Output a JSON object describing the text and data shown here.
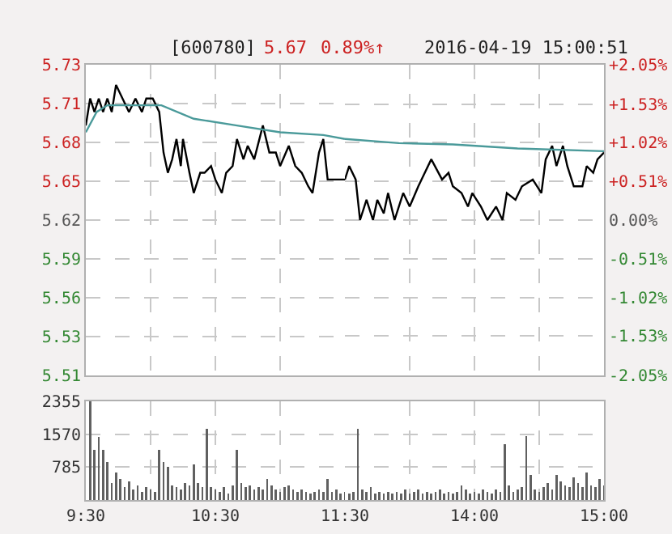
{
  "chart_data": [
    {
      "type": "line",
      "annotations": [
        "[600780]",
        "5.67",
        "0.89%↑",
        "2016-04-19 15:00:51"
      ],
      "xlim": [
        9.5,
        11.5
      ],
      "xticks": [
        {
          "value": 9.5,
          "label": null
        },
        {
          "value": 10,
          "label": null
        },
        {
          "value": 10.5,
          "label": null
        },
        {
          "value": 11,
          "label": null
        },
        {
          "value": 11.5,
          "label": null
        }
      ],
      "ylim": [
        5.505,
        5.735
      ],
      "yticks": [
        {
          "value": 5.505,
          "label": "5.51"
        },
        {
          "value": 5.53375,
          "label": "5.53"
        },
        {
          "value": 5.5625,
          "label": "5.56"
        },
        {
          "value": 5.59125,
          "label": "5.59"
        },
        {
          "value": 5.62,
          "label": "5.62"
        },
        {
          "value": 5.64875,
          "label": "5.65"
        },
        {
          "value": 5.6775,
          "label": "5.68"
        },
        {
          "value": 5.70625,
          "label": "5.71"
        },
        {
          "value": 5.735,
          "label": "5.73"
        }
      ],
      "grid": true,
      "tick_labels": "y",
      "series": [
        {
          "color": "#000000",
          "x": [
            9.5,
            9.5333,
            9.5667,
            9.6,
            9.6333,
            9.6667,
            9.7,
            9.7333,
            9.7833,
            9.8333,
            9.8833,
            9.9333,
            9.9667,
            10.0167,
            10.0667,
            10.1,
            10.1333,
            10.1667,
            10.2,
            10.2333,
            10.25,
            10.3,
            10.3333,
            10.3833,
            10.4167,
            10.4667,
            10.5,
            10.55,
            10.5833,
            10.6333,
            10.6667,
            10.7167,
            10.75,
            10.8,
            10.8667,
            10.9167,
            10.9667,
            11.0,
            11.0667,
            11.1167,
            11.1667,
            11.2167,
            11.25,
            11.3,
            11.3333,
            11.3667,
            11.4167,
            11.5
          ],
          "values": [
            5.69,
            5.71,
            5.7,
            5.71,
            5.7,
            5.71,
            5.7,
            5.72,
            5.71,
            5.7,
            5.71,
            5.7,
            5.71,
            5.71,
            5.7,
            5.67,
            5.655,
            5.665,
            5.68,
            5.66,
            5.68,
            5.655,
            5.64,
            5.655,
            5.655,
            5.66,
            5.65,
            5.64,
            5.655,
            5.66,
            5.68,
            5.665,
            5.675,
            5.665,
            5.69,
            5.67,
            5.67,
            5.66,
            5.675,
            5.66,
            5.655,
            5.645,
            5.64,
            5.67,
            5.68,
            5.65,
            5.65,
            5.65
          ]
        },
        {
          "color": "#4a9a9a",
          "x": [
            9.5,
            9.5833,
            9.6667,
            9.8333,
            10.0833,
            10.3333,
            10.6667,
            11.0,
            11.3333,
            11.5
          ],
          "values": [
            5.685,
            5.7,
            5.705,
            5.705,
            5.705,
            5.695,
            5.69,
            5.685,
            5.683,
            5.68
          ]
        }
      ]
    },
    {
      "type": "line",
      "xlim": [
        13,
        15
      ],
      "xticks": [
        {
          "value": 13.5,
          "label": null
        },
        {
          "value": 14,
          "label": null
        },
        {
          "value": 14.5,
          "label": null
        },
        {
          "value": 15,
          "label": null
        }
      ],
      "ylim": [
        5.505,
        5.735
      ],
      "y2lim": [
        -2.05,
        2.05
      ],
      "y2ticks": [
        {
          "value": -2.05,
          "label": "-2.05%"
        },
        {
          "value": -1.53,
          "label": "-1.53%"
        },
        {
          "value": -1.02,
          "label": "-1.02%"
        },
        {
          "value": -0.51,
          "label": "-0.51%"
        },
        {
          "value": 0,
          "label": "0.00%"
        },
        {
          "value": 0.51,
          "label": "+0.51%"
        },
        {
          "value": 1.02,
          "label": "+1.02%"
        },
        {
          "value": 1.53,
          "label": "+1.53%"
        },
        {
          "value": 2.05,
          "label": "+2.05%"
        }
      ],
      "grid": true,
      "tick_labels": "y",
      "series": [
        {
          "color": "#000000",
          "x": [
            13.0,
            13.0333,
            13.0833,
            13.1167,
            13.1667,
            13.2167,
            13.25,
            13.3,
            13.3333,
            13.3833,
            13.45,
            13.5,
            13.5667,
            13.6167,
            13.6667,
            13.75,
            13.8,
            13.8333,
            13.9,
            13.95,
            13.9833,
            14.05,
            14.1,
            14.1667,
            14.2167,
            14.25,
            14.3167,
            14.3667,
            14.45,
            14.5167,
            14.55,
            14.6,
            14.6333,
            14.6833,
            14.7167,
            14.7667,
            14.8333,
            14.8667,
            14.9167,
            14.95,
            15.0
          ],
          "values": [
            5.65,
            5.66,
            5.65,
            5.62,
            5.635,
            5.62,
            5.635,
            5.625,
            5.64,
            5.62,
            5.64,
            5.63,
            5.645,
            5.655,
            5.665,
            5.65,
            5.655,
            5.645,
            5.64,
            5.63,
            5.64,
            5.63,
            5.62,
            5.63,
            5.62,
            5.64,
            5.635,
            5.645,
            5.65,
            5.64,
            5.665,
            5.675,
            5.66,
            5.675,
            5.66,
            5.645,
            5.645,
            5.66,
            5.655,
            5.665,
            5.67
          ]
        },
        {
          "color": "#4a9a9a",
          "x": [
            13.0,
            13.4167,
            13.8333,
            14.3333,
            15.0
          ],
          "values": [
            5.68,
            5.677,
            5.676,
            5.673,
            5.671
          ]
        }
      ]
    },
    {
      "type": "bar",
      "color": "#606060",
      "grid": true,
      "xlim": [
        9.5,
        11.5
      ],
      "xticks": [
        {
          "value": 9.5,
          "label": "9:30"
        },
        {
          "value": 10,
          "label": null
        },
        {
          "value": 10.5,
          "label": "10:30"
        },
        {
          "value": 11,
          "label": null
        },
        {
          "value": 11.5,
          "label": "11:30"
        }
      ],
      "ylim": [
        0,
        2355
      ],
      "yticks": [
        785,
        1570,
        2355
      ],
      "x": [
        9.5333,
        9.5667,
        9.6,
        9.6333,
        9.6667,
        9.7,
        9.7333,
        9.7667,
        9.8,
        9.8333,
        9.8667,
        9.9,
        9.9333,
        9.9667,
        10.0,
        10.0333,
        10.0667,
        10.1,
        10.1333,
        10.1667,
        10.2,
        10.2333,
        10.2667,
        10.3,
        10.3333,
        10.3667,
        10.4,
        10.4333,
        10.4667,
        10.5,
        10.5333,
        10.5667,
        10.6,
        10.6333,
        10.6667,
        10.7,
        10.7333,
        10.7667,
        10.8,
        10.8333,
        10.8667,
        10.9,
        10.9333,
        10.9667,
        11.0,
        11.0333,
        11.0667,
        11.1,
        11.1333,
        11.1667,
        11.2,
        11.2333,
        11.2667,
        11.3,
        11.3333,
        11.3667,
        11.4,
        11.4333,
        11.4667,
        11.5
      ],
      "values": [
        2350,
        1200,
        1500,
        1200,
        900,
        400,
        650,
        500,
        300,
        450,
        250,
        350,
        200,
        300,
        250,
        200,
        1200,
        900,
        800,
        350,
        300,
        250,
        400,
        350,
        850,
        400,
        300,
        1700,
        300,
        250,
        200,
        300,
        150,
        350,
        1200,
        400,
        300,
        350,
        250,
        300,
        250,
        500,
        350,
        250,
        200,
        300,
        350,
        250,
        200,
        250,
        200,
        150,
        200,
        250,
        200,
        500,
        200,
        250,
        150,
        200
      ]
    },
    {
      "type": "bar",
      "color": "#606060",
      "grid": true,
      "tick_labels": "x",
      "xlim": [
        13,
        15
      ],
      "xticks": [
        {
          "value": 13.5,
          "label": null
        },
        {
          "value": 14,
          "label": "14:00"
        },
        {
          "value": 14.5,
          "label": null
        },
        {
          "value": 15,
          "label": "15:00"
        }
      ],
      "ylim": [
        0,
        2355
      ],
      "yticks": [
        785,
        1570,
        2355
      ],
      "x": [
        13.0333,
        13.0667,
        13.1,
        13.1333,
        13.1667,
        13.2,
        13.2333,
        13.2667,
        13.3,
        13.3333,
        13.3667,
        13.4,
        13.4333,
        13.4667,
        13.5,
        13.5333,
        13.5667,
        13.6,
        13.6333,
        13.6667,
        13.7,
        13.7333,
        13.7667,
        13.8,
        13.8333,
        13.8667,
        13.9,
        13.9333,
        13.9667,
        14.0,
        14.0333,
        14.0667,
        14.1,
        14.1333,
        14.1667,
        14.2,
        14.2333,
        14.2667,
        14.3,
        14.3333,
        14.3667,
        14.4,
        14.4333,
        14.4667,
        14.5,
        14.5333,
        14.5667,
        14.6,
        14.6333,
        14.6667,
        14.7,
        14.7333,
        14.7667,
        14.8,
        14.8333,
        14.8667,
        14.9,
        14.9333,
        14.9667,
        15.0
      ],
      "values": [
        150,
        200,
        1700,
        250,
        200,
        300,
        150,
        200,
        150,
        200,
        150,
        200,
        150,
        250,
        150,
        200,
        250,
        150,
        200,
        150,
        200,
        250,
        150,
        200,
        150,
        200,
        350,
        250,
        150,
        200,
        150,
        250,
        200,
        150,
        250,
        200,
        1330,
        350,
        200,
        250,
        300,
        1520,
        600,
        250,
        200,
        300,
        400,
        250,
        600,
        450,
        350,
        300,
        550,
        400,
        300,
        650,
        350,
        300,
        500,
        350
      ]
    }
  ]
}
